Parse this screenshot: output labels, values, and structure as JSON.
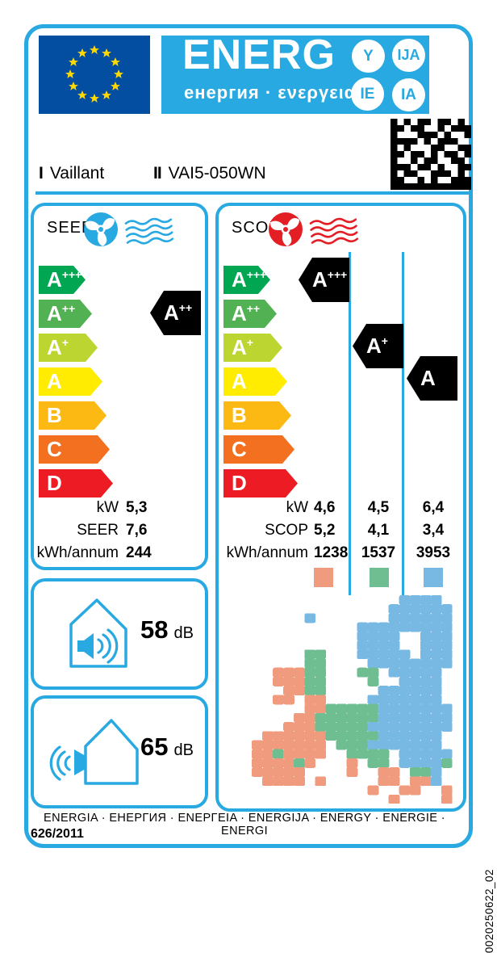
{
  "colors": {
    "accent": "#29A9E1",
    "eu_flag_blue": "#034EA1",
    "star_yellow": "#FFD900",
    "cooling_red": "#E31E24",
    "black": "#000000"
  },
  "header": {
    "energ_text": "ENERG",
    "energ_subtitle": "енергия · ενεργεια",
    "lang_circles": [
      "Y",
      "IJA",
      "IE",
      "IA"
    ],
    "supplier_numeral": "I",
    "supplier_name": "Vaillant",
    "model_numeral": "II",
    "model_name": "VAI5-050WN"
  },
  "rating_scale": [
    {
      "label": "A+++",
      "color": "#00A651"
    },
    {
      "label": "A++",
      "color": "#52B153"
    },
    {
      "label": "A+",
      "color": "#BCD531"
    },
    {
      "label": "A",
      "color": "#FFEC00"
    },
    {
      "label": "B",
      "color": "#FDB913"
    },
    {
      "label": "C",
      "color": "#F37021"
    },
    {
      "label": "D",
      "color": "#ED1C24"
    }
  ],
  "seer": {
    "title": "SEER",
    "indicator": "A++",
    "rows": [
      {
        "label": "kW",
        "values": [
          "5,3"
        ]
      },
      {
        "label": "SEER",
        "values": [
          "7,6"
        ]
      },
      {
        "label": "kWh/annum",
        "values": [
          "244"
        ]
      }
    ]
  },
  "scop": {
    "title": "SCOP",
    "indicators": [
      "A+++",
      "A+",
      "A"
    ],
    "rows": [
      {
        "label": "kW",
        "values": [
          "4,6",
          "4,5",
          "6,4"
        ]
      },
      {
        "label": "SCOP",
        "values": [
          "5,2",
          "4,1",
          "3,4"
        ]
      },
      {
        "label": "kWh/annum",
        "values": [
          "1238",
          "1537",
          "3953"
        ]
      }
    ],
    "legend_colors": [
      "#F09B7D",
      "#6FBE92",
      "#77B9E3"
    ]
  },
  "noise": {
    "indoor": {
      "value": "58",
      "unit": "dB"
    },
    "outdoor": {
      "value": "65",
      "unit": "dB"
    }
  },
  "footer": {
    "energy_words": "ENERGIA · ЕНЕРГИЯ · ΕΝΕΡΓΕΙΑ · ENERGIJA · ENERGY · ENERGIE · ENERGI",
    "regulation": "626/2011",
    "doc_code": "0020250622_02"
  },
  "datamatrix_grid": [
    "101011011010",
    "110110010111",
    "100011101001",
    "111101011100",
    "101000110011",
    "110110101101",
    "100101100110",
    "111011010011",
    "101100111010",
    "110010100111",
    "111111111111"
  ],
  "map": {
    "cell_colors": {
      "o": "#F09B7D",
      "g": "#6FBE92",
      "b": "#77B9E3"
    },
    "grid": [
      "...............bbbb..",
      "..............bbbbbb.",
      "......b.......bbbbbb.",
      "...........bbbbbbbbb.",
      "...........bbbb..bbb.",
      "...........bbbb..bbb.",
      "......gg...bbbbb.bbb.",
      "......gg....bbbbbbbb.",
      "...ooogg...gg.bbbbb..",
      "...ooogg....g..bbbb..",
      "....oogg.....bbbbbb..",
      "...oo.oo....bbbbbbb..",
      "......oogggggbbbbbbb.",
      ".....ooggggggbbbbbbb.",
      "....ooogggggbbbbbbbb.",
      "..oooooogggggbbbbbb..",
      ".ooooooo.gggbbbbbbb..",
      ".oogoooo..gggg.bbbbb.",
      ".oooogo...o.gg.bbbbg.",
      ".ooooo....o..oo.ggb..",
      "..oooo.o.....oo.oob..",
      "............o..oo..o.",
      "..............o....o."
    ]
  }
}
